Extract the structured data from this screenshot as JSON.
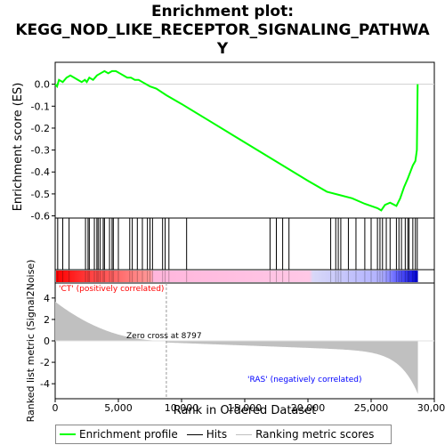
{
  "chart_data": {
    "type": "line",
    "title_line1": "Enrichment plot:",
    "title_line2": "KEGG_NOD_LIKE_RECEPTOR_SIGNALING_PATHWA",
    "title_line3": "Y",
    "es_ylabel": "Enrichment score (ES)",
    "metric_ylabel": "Ranked list metric (Signal2Noise)",
    "xlabel": "Rank in Ordered Dataset",
    "x_ticks": [
      "0",
      "5,000",
      "10,000",
      "15,000",
      "20,000",
      "25,000",
      "30,000"
    ],
    "es_ticks": [
      "0.0",
      "-0.1",
      "-0.2",
      "-0.3",
      "-0.4",
      "-0.5",
      "-0.6"
    ],
    "metric_ticks": [
      "4",
      "2",
      "0",
      "-2",
      "-4"
    ],
    "xlim": [
      0,
      30000
    ],
    "es_ylim": [
      -0.61,
      0.1
    ],
    "metric_ylim": [
      -5.4,
      5.4
    ],
    "n_genes": 28700,
    "zero_cross_rank": 8797,
    "zero_cross_label": "Zero cross at 8797",
    "pos_label": "'CT' (positively correlated)",
    "neg_label": "'RAS' (negatively correlated)",
    "es_profile": [
      [
        0,
        0.0
      ],
      [
        150,
        -0.01
      ],
      [
        300,
        0.02
      ],
      [
        600,
        0.01
      ],
      [
        900,
        0.03
      ],
      [
        1200,
        0.04
      ],
      [
        1500,
        0.03
      ],
      [
        1800,
        0.02
      ],
      [
        2100,
        0.01
      ],
      [
        2350,
        0.02
      ],
      [
        2500,
        0.01
      ],
      [
        2700,
        0.03
      ],
      [
        3000,
        0.02
      ],
      [
        3300,
        0.04
      ],
      [
        3600,
        0.05
      ],
      [
        3900,
        0.06
      ],
      [
        4200,
        0.05
      ],
      [
        4500,
        0.06
      ],
      [
        4800,
        0.06
      ],
      [
        5100,
        0.05
      ],
      [
        5400,
        0.04
      ],
      [
        5700,
        0.03
      ],
      [
        6000,
        0.03
      ],
      [
        6300,
        0.02
      ],
      [
        6600,
        0.02
      ],
      [
        6900,
        0.01
      ],
      [
        7200,
        0.0
      ],
      [
        7500,
        -0.01
      ],
      [
        8000,
        -0.02
      ],
      [
        8797,
        -0.05
      ],
      [
        10000,
        -0.09
      ],
      [
        12000,
        -0.16
      ],
      [
        14000,
        -0.23
      ],
      [
        16000,
        -0.3
      ],
      [
        18000,
        -0.37
      ],
      [
        20000,
        -0.44
      ],
      [
        21500,
        -0.49
      ],
      [
        22500,
        -0.505
      ],
      [
        23500,
        -0.52
      ],
      [
        24500,
        -0.545
      ],
      [
        25500,
        -0.565
      ],
      [
        25800,
        -0.575
      ],
      [
        26100,
        -0.55
      ],
      [
        26500,
        -0.54
      ],
      [
        27000,
        -0.555
      ],
      [
        27300,
        -0.52
      ],
      [
        27600,
        -0.47
      ],
      [
        27900,
        -0.43
      ],
      [
        28100,
        -0.4
      ],
      [
        28300,
        -0.37
      ],
      [
        28500,
        -0.35
      ],
      [
        28620,
        -0.3
      ],
      [
        28650,
        -0.15
      ],
      [
        28680,
        0.0
      ]
    ],
    "hits": [
      200,
      600,
      1100,
      2400,
      2600,
      2700,
      3100,
      3300,
      3400,
      3550,
      3800,
      3900,
      4300,
      4500,
      4600,
      5000,
      5900,
      6100,
      6500,
      6900,
      7300,
      7500,
      7700,
      8500,
      8700,
      9000,
      10400,
      17000,
      17500,
      18000,
      18500,
      21800,
      22200,
      22400,
      22600,
      23200,
      23800,
      24500,
      25000,
      25500,
      25700,
      25900,
      26200,
      26500,
      27000,
      27200,
      27400,
      27700,
      27900,
      28000,
      28300,
      28500,
      28650
    ]
  },
  "legend": {
    "enrichment": "Enrichment profile",
    "hits": "Hits",
    "ranking": "Ranking metric scores"
  },
  "colors": {
    "profile": "#00ff00",
    "hits": "#000000",
    "metric_fill": "#c0c0c0",
    "bar_pos": "#ff0000",
    "bar_neg": "#0000ff",
    "pos_text": "#ff0000",
    "neg_text": "#0000ff"
  }
}
